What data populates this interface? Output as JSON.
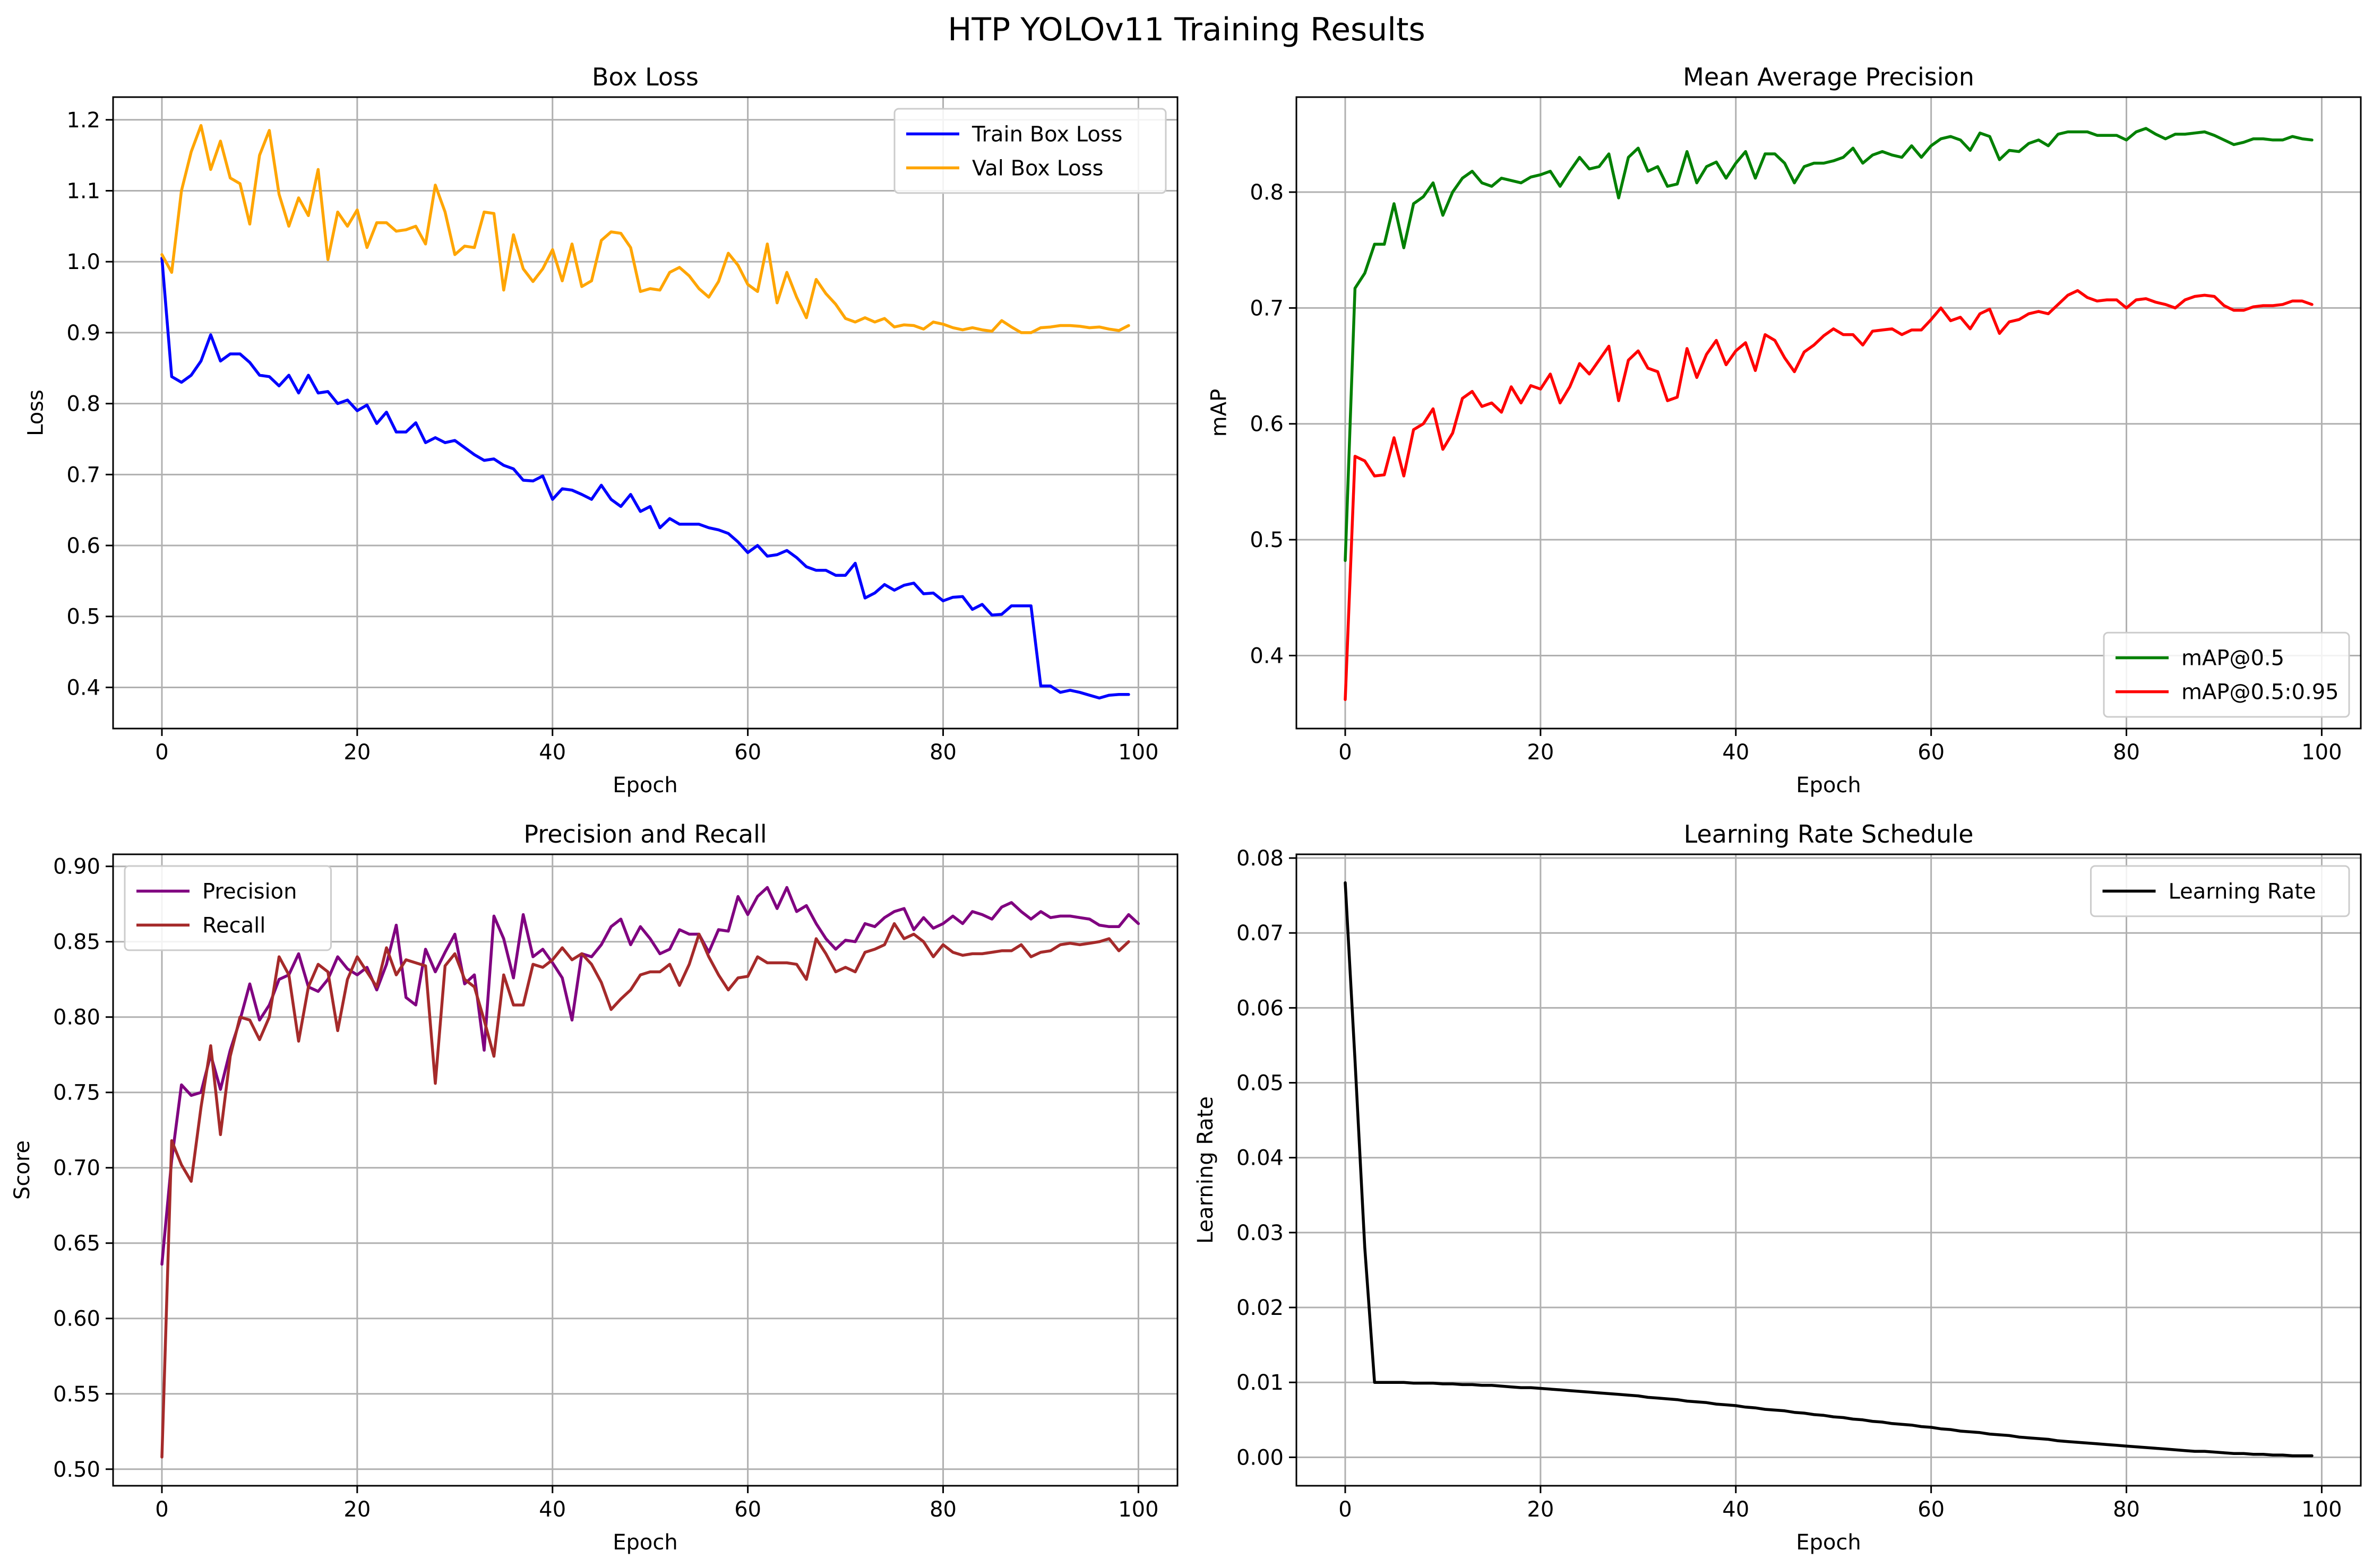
{
  "figure": {
    "title": "HTP YOLOv11 Training Results"
  },
  "chart_data": [
    {
      "id": "box",
      "type": "line",
      "title": "Box Loss",
      "xlabel": "Epoch",
      "ylabel": "Loss",
      "xlim": [
        -5,
        104
      ],
      "ylim": [
        0.342,
        1.232
      ],
      "xticks": [
        0,
        20,
        40,
        60,
        80,
        100
      ],
      "yticks": [
        0.4,
        0.5,
        0.6,
        0.7,
        0.8,
        0.9,
        1.0,
        1.1,
        1.2
      ],
      "ytick_decimals": 1,
      "grid": true,
      "legend_position": "top-right",
      "series": [
        {
          "name": "Train Box Loss",
          "color": "#0000ff",
          "x_start": 0,
          "values": [
            1.005,
            0.838,
            0.83,
            0.84,
            0.86,
            0.897,
            0.86,
            0.87,
            0.87,
            0.858,
            0.84,
            0.838,
            0.825,
            0.84,
            0.815,
            0.84,
            0.815,
            0.817,
            0.8,
            0.805,
            0.79,
            0.798,
            0.772,
            0.788,
            0.76,
            0.76,
            0.773,
            0.745,
            0.752,
            0.745,
            0.748,
            0.738,
            0.728,
            0.72,
            0.722,
            0.713,
            0.708,
            0.692,
            0.691,
            0.698,
            0.665,
            0.68,
            0.678,
            0.672,
            0.665,
            0.685,
            0.665,
            0.655,
            0.672,
            0.648,
            0.655,
            0.625,
            0.638,
            0.63,
            0.63,
            0.63,
            0.625,
            0.622,
            0.617,
            0.605,
            0.59,
            0.6,
            0.585,
            0.587,
            0.593,
            0.583,
            0.57,
            0.565,
            0.565,
            0.558,
            0.558,
            0.575,
            0.526,
            0.533,
            0.545,
            0.537,
            0.544,
            0.547,
            0.532,
            0.533,
            0.522,
            0.527,
            0.528,
            0.51,
            0.517,
            0.502,
            0.503,
            0.515,
            0.515,
            0.515,
            0.402,
            0.402,
            0.393,
            0.396,
            0.393,
            0.389,
            0.385,
            0.389,
            0.39,
            0.39
          ]
        },
        {
          "name": "Val Box Loss",
          "color": "#ffa500",
          "x_start": 0,
          "values": [
            1.01,
            0.985,
            1.1,
            1.155,
            1.192,
            1.13,
            1.17,
            1.118,
            1.11,
            1.053,
            1.15,
            1.185,
            1.095,
            1.05,
            1.09,
            1.065,
            1.13,
            1.003,
            1.07,
            1.05,
            1.073,
            1.02,
            1.055,
            1.055,
            1.043,
            1.045,
            1.05,
            1.025,
            1.108,
            1.07,
            1.01,
            1.022,
            1.02,
            1.07,
            1.068,
            0.96,
            1.038,
            0.99,
            0.972,
            0.99,
            1.017,
            0.973,
            1.025,
            0.965,
            0.973,
            1.03,
            1.042,
            1.04,
            1.02,
            0.958,
            0.962,
            0.96,
            0.985,
            0.992,
            0.98,
            0.962,
            0.95,
            0.972,
            1.012,
            0.995,
            0.968,
            0.958,
            1.025,
            0.942,
            0.985,
            0.95,
            0.921,
            0.975,
            0.955,
            0.94,
            0.92,
            0.915,
            0.921,
            0.915,
            0.92,
            0.908,
            0.911,
            0.91,
            0.905,
            0.915,
            0.912,
            0.907,
            0.904,
            0.907,
            0.904,
            0.902,
            0.917,
            0.908,
            0.9,
            0.9,
            0.907,
            0.908,
            0.91,
            0.91,
            0.909,
            0.907,
            0.908,
            0.905,
            0.903,
            0.91
          ]
        }
      ]
    },
    {
      "id": "map",
      "type": "line",
      "title": "Mean Average Precision",
      "xlabel": "Epoch",
      "ylabel": "mAP",
      "xlim": [
        -5,
        104
      ],
      "ylim": [
        0.337,
        0.882
      ],
      "xticks": [
        0,
        20,
        40,
        60,
        80,
        100
      ],
      "yticks": [
        0.4,
        0.5,
        0.6,
        0.7,
        0.8
      ],
      "ytick_decimals": 1,
      "grid": true,
      "legend_position": "bottom-right",
      "series": [
        {
          "name": "mAP@0.5",
          "color": "#008000",
          "x_start": 0,
          "values": [
            0.482,
            0.717,
            0.73,
            0.755,
            0.755,
            0.79,
            0.752,
            0.79,
            0.796,
            0.808,
            0.78,
            0.8,
            0.812,
            0.818,
            0.808,
            0.805,
            0.812,
            0.81,
            0.808,
            0.813,
            0.815,
            0.818,
            0.805,
            0.818,
            0.83,
            0.82,
            0.822,
            0.833,
            0.795,
            0.83,
            0.838,
            0.818,
            0.822,
            0.805,
            0.807,
            0.835,
            0.808,
            0.822,
            0.826,
            0.812,
            0.825,
            0.835,
            0.812,
            0.833,
            0.833,
            0.825,
            0.808,
            0.822,
            0.825,
            0.825,
            0.827,
            0.83,
            0.838,
            0.825,
            0.832,
            0.835,
            0.832,
            0.83,
            0.84,
            0.83,
            0.84,
            0.846,
            0.848,
            0.845,
            0.836,
            0.851,
            0.848,
            0.828,
            0.836,
            0.835,
            0.842,
            0.845,
            0.84,
            0.85,
            0.852,
            0.852,
            0.852,
            0.849,
            0.849,
            0.849,
            0.845,
            0.852,
            0.855,
            0.85,
            0.846,
            0.85,
            0.85,
            0.851,
            0.852,
            0.849,
            0.845,
            0.841,
            0.843,
            0.846,
            0.846,
            0.845,
            0.845,
            0.848,
            0.846,
            0.845
          ]
        },
        {
          "name": "mAP@0.5:0.95",
          "color": "#ff0000",
          "x_start": 0,
          "values": [
            0.362,
            0.572,
            0.568,
            0.555,
            0.556,
            0.588,
            0.555,
            0.595,
            0.6,
            0.613,
            0.578,
            0.592,
            0.622,
            0.628,
            0.615,
            0.618,
            0.61,
            0.632,
            0.618,
            0.633,
            0.63,
            0.643,
            0.618,
            0.632,
            0.652,
            0.643,
            0.655,
            0.667,
            0.62,
            0.655,
            0.663,
            0.648,
            0.645,
            0.62,
            0.623,
            0.665,
            0.64,
            0.66,
            0.672,
            0.651,
            0.663,
            0.67,
            0.646,
            0.677,
            0.672,
            0.657,
            0.645,
            0.662,
            0.668,
            0.676,
            0.682,
            0.677,
            0.677,
            0.668,
            0.68,
            0.681,
            0.682,
            0.677,
            0.681,
            0.681,
            0.69,
            0.7,
            0.689,
            0.692,
            0.682,
            0.695,
            0.699,
            0.678,
            0.688,
            0.69,
            0.695,
            0.697,
            0.695,
            0.703,
            0.711,
            0.715,
            0.709,
            0.706,
            0.707,
            0.707,
            0.7,
            0.707,
            0.708,
            0.705,
            0.703,
            0.7,
            0.707,
            0.71,
            0.711,
            0.71,
            0.702,
            0.698,
            0.698,
            0.701,
            0.702,
            0.702,
            0.703,
            0.706,
            0.706,
            0.703
          ]
        }
      ]
    },
    {
      "id": "pr",
      "type": "line",
      "title": "Precision and Recall",
      "xlabel": "Epoch",
      "ylabel": "Score",
      "xlim": [
        -5,
        104
      ],
      "ylim": [
        0.489,
        0.908
      ],
      "xticks": [
        0,
        20,
        40,
        60,
        80,
        100
      ],
      "yticks": [
        0.5,
        0.55,
        0.6,
        0.65,
        0.7,
        0.75,
        0.8,
        0.85,
        0.9
      ],
      "ytick_decimals": 2,
      "grid": true,
      "legend_position": "top-left",
      "series": [
        {
          "name": "Precision",
          "color": "#800080",
          "x_start": 0,
          "values": [
            0.636,
            0.705,
            0.755,
            0.748,
            0.75,
            0.775,
            0.752,
            0.778,
            0.798,
            0.822,
            0.798,
            0.808,
            0.825,
            0.828,
            0.842,
            0.82,
            0.817,
            0.825,
            0.84,
            0.832,
            0.828,
            0.833,
            0.818,
            0.835,
            0.861,
            0.813,
            0.808,
            0.845,
            0.83,
            0.843,
            0.855,
            0.822,
            0.828,
            0.778,
            0.867,
            0.852,
            0.826,
            0.868,
            0.84,
            0.845,
            0.836,
            0.826,
            0.798,
            0.842,
            0.84,
            0.848,
            0.86,
            0.865,
            0.848,
            0.86,
            0.852,
            0.842,
            0.845,
            0.858,
            0.855,
            0.855,
            0.843,
            0.858,
            0.857,
            0.88,
            0.868,
            0.88,
            0.886,
            0.872,
            0.886,
            0.87,
            0.874,
            0.862,
            0.852,
            0.845,
            0.851,
            0.85,
            0.862,
            0.86,
            0.866,
            0.87,
            0.872,
            0.858,
            0.866,
            0.859,
            0.862,
            0.867,
            0.862,
            0.87,
            0.868,
            0.865,
            0.873,
            0.876,
            0.87,
            0.865,
            0.87,
            0.866,
            0.867,
            0.867,
            0.866,
            0.865,
            0.861,
            0.86,
            0.86,
            0.868,
            0.862
          ]
        },
        {
          "name": "Recall",
          "color": "#a52a2a",
          "x_start": 0,
          "values": [
            0.508,
            0.718,
            0.702,
            0.691,
            0.74,
            0.781,
            0.722,
            0.774,
            0.8,
            0.798,
            0.785,
            0.8,
            0.84,
            0.828,
            0.784,
            0.82,
            0.835,
            0.83,
            0.791,
            0.825,
            0.84,
            0.83,
            0.82,
            0.846,
            0.828,
            0.838,
            0.836,
            0.834,
            0.756,
            0.834,
            0.842,
            0.825,
            0.82,
            0.798,
            0.774,
            0.828,
            0.808,
            0.808,
            0.835,
            0.833,
            0.838,
            0.846,
            0.838,
            0.842,
            0.835,
            0.823,
            0.805,
            0.812,
            0.818,
            0.828,
            0.83,
            0.83,
            0.835,
            0.821,
            0.835,
            0.855,
            0.84,
            0.828,
            0.818,
            0.826,
            0.827,
            0.84,
            0.836,
            0.836,
            0.836,
            0.835,
            0.825,
            0.852,
            0.842,
            0.83,
            0.833,
            0.83,
            0.843,
            0.845,
            0.848,
            0.862,
            0.852,
            0.855,
            0.85,
            0.84,
            0.848,
            0.843,
            0.841,
            0.842,
            0.842,
            0.843,
            0.844,
            0.844,
            0.848,
            0.84,
            0.843,
            0.844,
            0.848,
            0.849,
            0.848,
            0.849,
            0.85,
            0.852,
            0.844,
            0.85
          ]
        }
      ]
    },
    {
      "id": "lr",
      "type": "line",
      "title": "Learning Rate Schedule",
      "xlabel": "Epoch",
      "ylabel": "Learning Rate",
      "xlim": [
        -5,
        104
      ],
      "ylim": [
        -0.0038,
        0.0805
      ],
      "xticks": [
        0,
        20,
        40,
        60,
        80,
        100
      ],
      "yticks": [
        0.0,
        0.01,
        0.02,
        0.03,
        0.04,
        0.05,
        0.06,
        0.07,
        0.08
      ],
      "ytick_decimals": 2,
      "grid": true,
      "legend_position": "top-right",
      "series": [
        {
          "name": "Learning Rate",
          "color": "#000000",
          "x_start": 0,
          "values": [
            0.0767,
            0.053,
            0.028,
            0.01,
            0.01,
            0.01,
            0.01,
            0.0099,
            0.0099,
            0.0099,
            0.0098,
            0.0098,
            0.0097,
            0.0097,
            0.0096,
            0.0096,
            0.0095,
            0.0094,
            0.0093,
            0.0093,
            0.0092,
            0.0091,
            0.009,
            0.0089,
            0.0088,
            0.0087,
            0.0086,
            0.0085,
            0.0084,
            0.0083,
            0.0082,
            0.008,
            0.0079,
            0.0078,
            0.0077,
            0.0075,
            0.0074,
            0.0073,
            0.0071,
            0.007,
            0.0069,
            0.0067,
            0.0066,
            0.0064,
            0.0063,
            0.0062,
            0.006,
            0.0059,
            0.0057,
            0.0056,
            0.0054,
            0.0053,
            0.0051,
            0.005,
            0.0048,
            0.0047,
            0.0045,
            0.0044,
            0.0043,
            0.0041,
            0.004,
            0.0038,
            0.0037,
            0.0035,
            0.0034,
            0.0033,
            0.0031,
            0.003,
            0.0029,
            0.0027,
            0.0026,
            0.0025,
            0.0024,
            0.0022,
            0.0021,
            0.002,
            0.0019,
            0.0018,
            0.0017,
            0.0016,
            0.0015,
            0.0014,
            0.0013,
            0.0012,
            0.0011,
            0.001,
            0.0009,
            0.0008,
            0.0008,
            0.0007,
            0.0006,
            0.0005,
            0.0005,
            0.0004,
            0.0004,
            0.0003,
            0.0003,
            0.0002,
            0.0002,
            0.0002
          ]
        }
      ]
    }
  ]
}
